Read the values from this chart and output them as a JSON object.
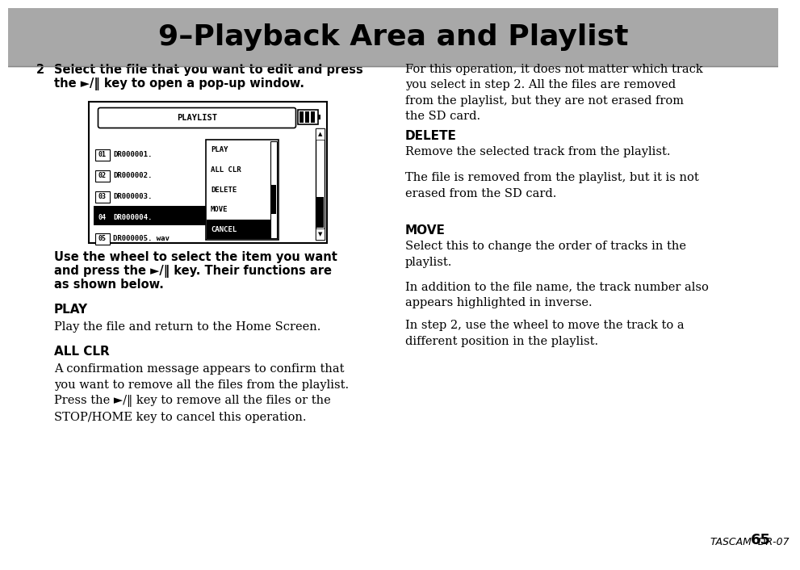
{
  "title": "9–Playback Area and Playlist",
  "title_bg": "#a8a8a8",
  "title_color": "#000000",
  "title_fontsize": 26,
  "page_bg": "#ffffff",
  "footer_text": "TASCAM  DR-07 ",
  "footer_page": "65"
}
